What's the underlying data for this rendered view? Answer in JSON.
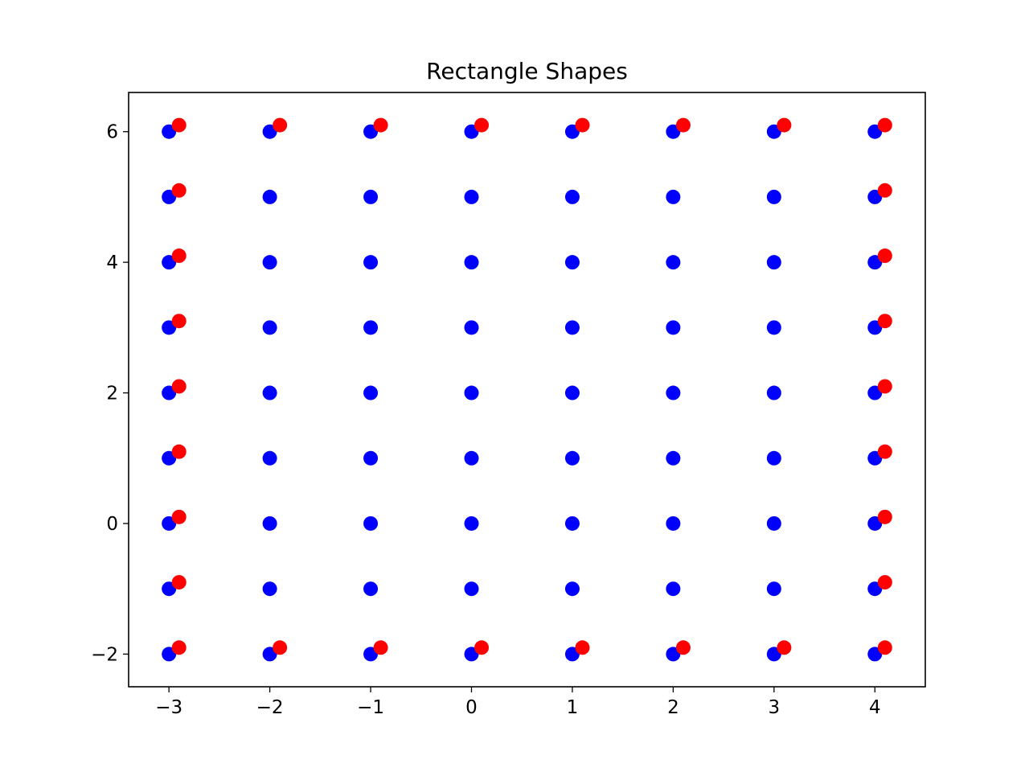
{
  "chart_data": {
    "type": "scatter",
    "title": "Rectangle Shapes",
    "xlabel": "",
    "ylabel": "",
    "xlim": [
      -3.4,
      4.5
    ],
    "ylim": [
      -2.5,
      6.6
    ],
    "x_ticks": [
      -3,
      -2,
      -1,
      0,
      1,
      2,
      3,
      4
    ],
    "x_tick_labels": [
      "−3",
      "−2",
      "−1",
      "0",
      "1",
      "2",
      "3",
      "4"
    ],
    "y_ticks": [
      -2,
      0,
      2,
      4,
      6
    ],
    "y_tick_labels": [
      "−2",
      "0",
      "2",
      "4",
      "6"
    ],
    "grid": false,
    "series": [
      {
        "color": "#0000ff",
        "points": [
          [
            -3,
            -2
          ],
          [
            -3,
            -1
          ],
          [
            -3,
            0
          ],
          [
            -3,
            1
          ],
          [
            -3,
            2
          ],
          [
            -3,
            3
          ],
          [
            -3,
            4
          ],
          [
            -3,
            5
          ],
          [
            -3,
            6
          ],
          [
            -2,
            -2
          ],
          [
            -2,
            -1
          ],
          [
            -2,
            0
          ],
          [
            -2,
            1
          ],
          [
            -2,
            2
          ],
          [
            -2,
            3
          ],
          [
            -2,
            4
          ],
          [
            -2,
            5
          ],
          [
            -2,
            6
          ],
          [
            -1,
            -2
          ],
          [
            -1,
            -1
          ],
          [
            -1,
            0
          ],
          [
            -1,
            1
          ],
          [
            -1,
            2
          ],
          [
            -1,
            3
          ],
          [
            -1,
            4
          ],
          [
            -1,
            5
          ],
          [
            -1,
            6
          ],
          [
            0,
            -2
          ],
          [
            0,
            -1
          ],
          [
            0,
            0
          ],
          [
            0,
            1
          ],
          [
            0,
            2
          ],
          [
            0,
            3
          ],
          [
            0,
            4
          ],
          [
            0,
            5
          ],
          [
            0,
            6
          ],
          [
            1,
            -2
          ],
          [
            1,
            -1
          ],
          [
            1,
            0
          ],
          [
            1,
            1
          ],
          [
            1,
            2
          ],
          [
            1,
            3
          ],
          [
            1,
            4
          ],
          [
            1,
            5
          ],
          [
            1,
            6
          ],
          [
            2,
            -2
          ],
          [
            2,
            -1
          ],
          [
            2,
            0
          ],
          [
            2,
            1
          ],
          [
            2,
            2
          ],
          [
            2,
            3
          ],
          [
            2,
            4
          ],
          [
            2,
            5
          ],
          [
            2,
            6
          ],
          [
            3,
            -2
          ],
          [
            3,
            -1
          ],
          [
            3,
            0
          ],
          [
            3,
            1
          ],
          [
            3,
            2
          ],
          [
            3,
            3
          ],
          [
            3,
            4
          ],
          [
            3,
            5
          ],
          [
            3,
            6
          ],
          [
            4,
            -2
          ],
          [
            4,
            -1
          ],
          [
            4,
            0
          ],
          [
            4,
            1
          ],
          [
            4,
            2
          ],
          [
            4,
            3
          ],
          [
            4,
            4
          ],
          [
            4,
            5
          ],
          [
            4,
            6
          ]
        ]
      },
      {
        "color": "#ff0000",
        "points": [
          [
            -2.9,
            -1.9
          ],
          [
            -1.9,
            -1.9
          ],
          [
            -0.9,
            -1.9
          ],
          [
            0.1,
            -1.9
          ],
          [
            1.1,
            -1.9
          ],
          [
            2.1,
            -1.9
          ],
          [
            3.1,
            -1.9
          ],
          [
            4.1,
            -1.9
          ],
          [
            -2.9,
            6.1
          ],
          [
            -1.9,
            6.1
          ],
          [
            -0.9,
            6.1
          ],
          [
            0.1,
            6.1
          ],
          [
            1.1,
            6.1
          ],
          [
            2.1,
            6.1
          ],
          [
            3.1,
            6.1
          ],
          [
            4.1,
            6.1
          ],
          [
            -2.9,
            -0.9
          ],
          [
            -2.9,
            0.1
          ],
          [
            -2.9,
            1.1
          ],
          [
            -2.9,
            2.1
          ],
          [
            -2.9,
            3.1
          ],
          [
            -2.9,
            4.1
          ],
          [
            -2.9,
            5.1
          ],
          [
            4.1,
            -0.9
          ],
          [
            4.1,
            0.1
          ],
          [
            4.1,
            1.1
          ],
          [
            4.1,
            2.1
          ],
          [
            4.1,
            3.1
          ],
          [
            4.1,
            4.1
          ],
          [
            4.1,
            5.1
          ]
        ]
      }
    ]
  }
}
